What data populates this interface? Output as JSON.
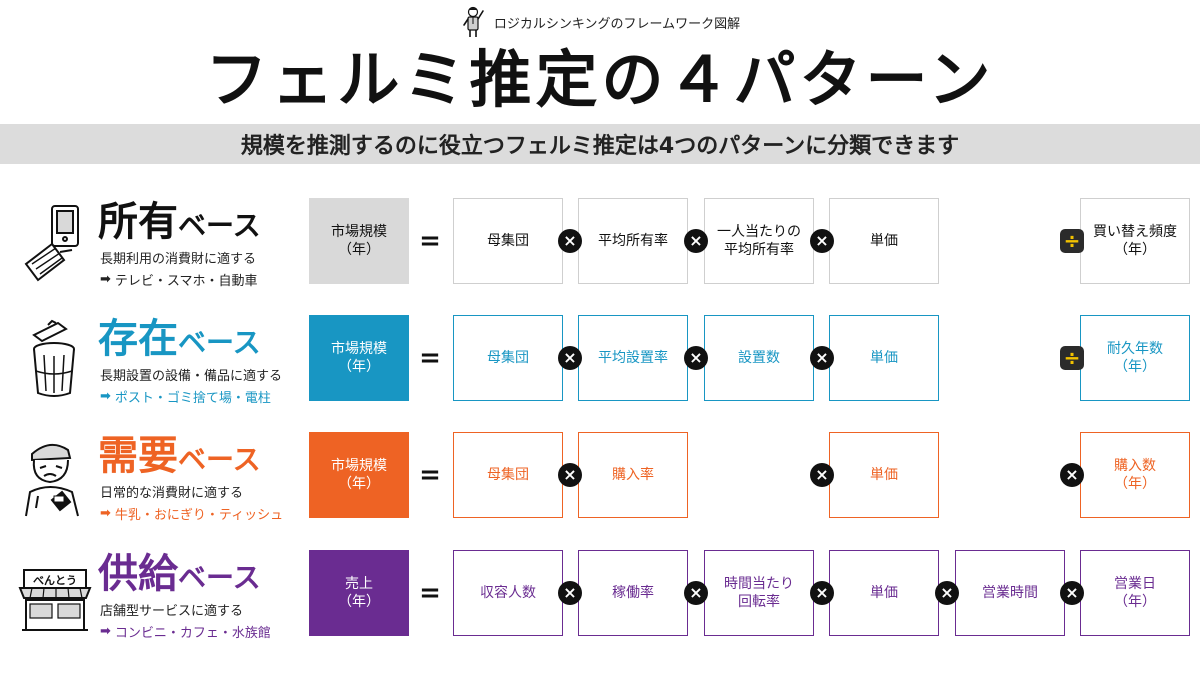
{
  "header": {
    "subtitle": "ロジカルシンキングのフレームワーク図解",
    "title": "フェルミ推定の４パターン",
    "band_text": "規模を推測するのに役立つフェルミ推定は4つのパターンに分類できます"
  },
  "rows": [
    {
      "title_big": "所有",
      "title_small": "ベース",
      "color": "#111111",
      "lhs_bg": "#d9d9d9",
      "lhs_fg": "#111111",
      "box_border": "#cfcfcf",
      "box_fg": "#111111",
      "description": "長期利用の消費財に適する",
      "examples": "テレビ・スマホ・自動車",
      "illustration": "flip-phone-icon",
      "lhs": "市場規模\n（年）",
      "equals": "=",
      "cells": [
        "母集団",
        "平均所有率",
        "一人当たりの\n平均所有率",
        "単価",
        "",
        "買い替え頻度\n（年）"
      ],
      "ops": [
        "×",
        "×",
        "×",
        "",
        "÷"
      ]
    },
    {
      "title_big": "存在",
      "title_small": "ベース",
      "color": "#1896c3",
      "lhs_bg": "#1896c3",
      "lhs_fg": "#ffffff",
      "box_border": "#1896c3",
      "box_fg": "#1896c3",
      "description": "長期設置の設備・備品に適する",
      "examples": "ポスト・ゴミ捨て場・電柱",
      "illustration": "trash-can-icon",
      "lhs": "市場規模\n（年）",
      "equals": "=",
      "cells": [
        "母集団",
        "平均設置率",
        "設置数",
        "単価",
        "",
        "耐久年数\n（年）"
      ],
      "ops": [
        "×",
        "×",
        "×",
        "",
        "÷"
      ]
    },
    {
      "title_big": "需要",
      "title_small": "ベース",
      "color": "#ee6324",
      "lhs_bg": "#ee6324",
      "lhs_fg": "#ffffff",
      "box_border": "#ee6324",
      "box_fg": "#ee6324",
      "description": "日常的な消費財に適する",
      "examples": "牛乳・おにぎり・ティッシュ",
      "illustration": "eating-man-icon",
      "lhs": "市場規模\n（年）",
      "equals": "=",
      "cells": [
        "母集団",
        "購入率",
        "",
        "単価",
        "",
        "購入数\n（年）"
      ],
      "ops": [
        "×",
        "",
        "×",
        "",
        "×"
      ]
    },
    {
      "title_big": "供給",
      "title_small": "ベース",
      "color": "#6a2c91",
      "lhs_bg": "#6a2c91",
      "lhs_fg": "#ffffff",
      "box_border": "#6a2c91",
      "box_fg": "#6a2c91",
      "description": "店舗型サービスに適する",
      "examples": "コンビニ・カフェ・水族館",
      "illustration": "bento-shop-icon",
      "shop_sign": "べんとう",
      "lhs": "売上\n（年）",
      "equals": "=",
      "cells": [
        "収容人数",
        "稼働率",
        "時間当たり\n回転率",
        "単価",
        "営業時間",
        "営業日\n（年）"
      ],
      "ops": [
        "×",
        "×",
        "×",
        "×",
        "×"
      ]
    }
  ]
}
